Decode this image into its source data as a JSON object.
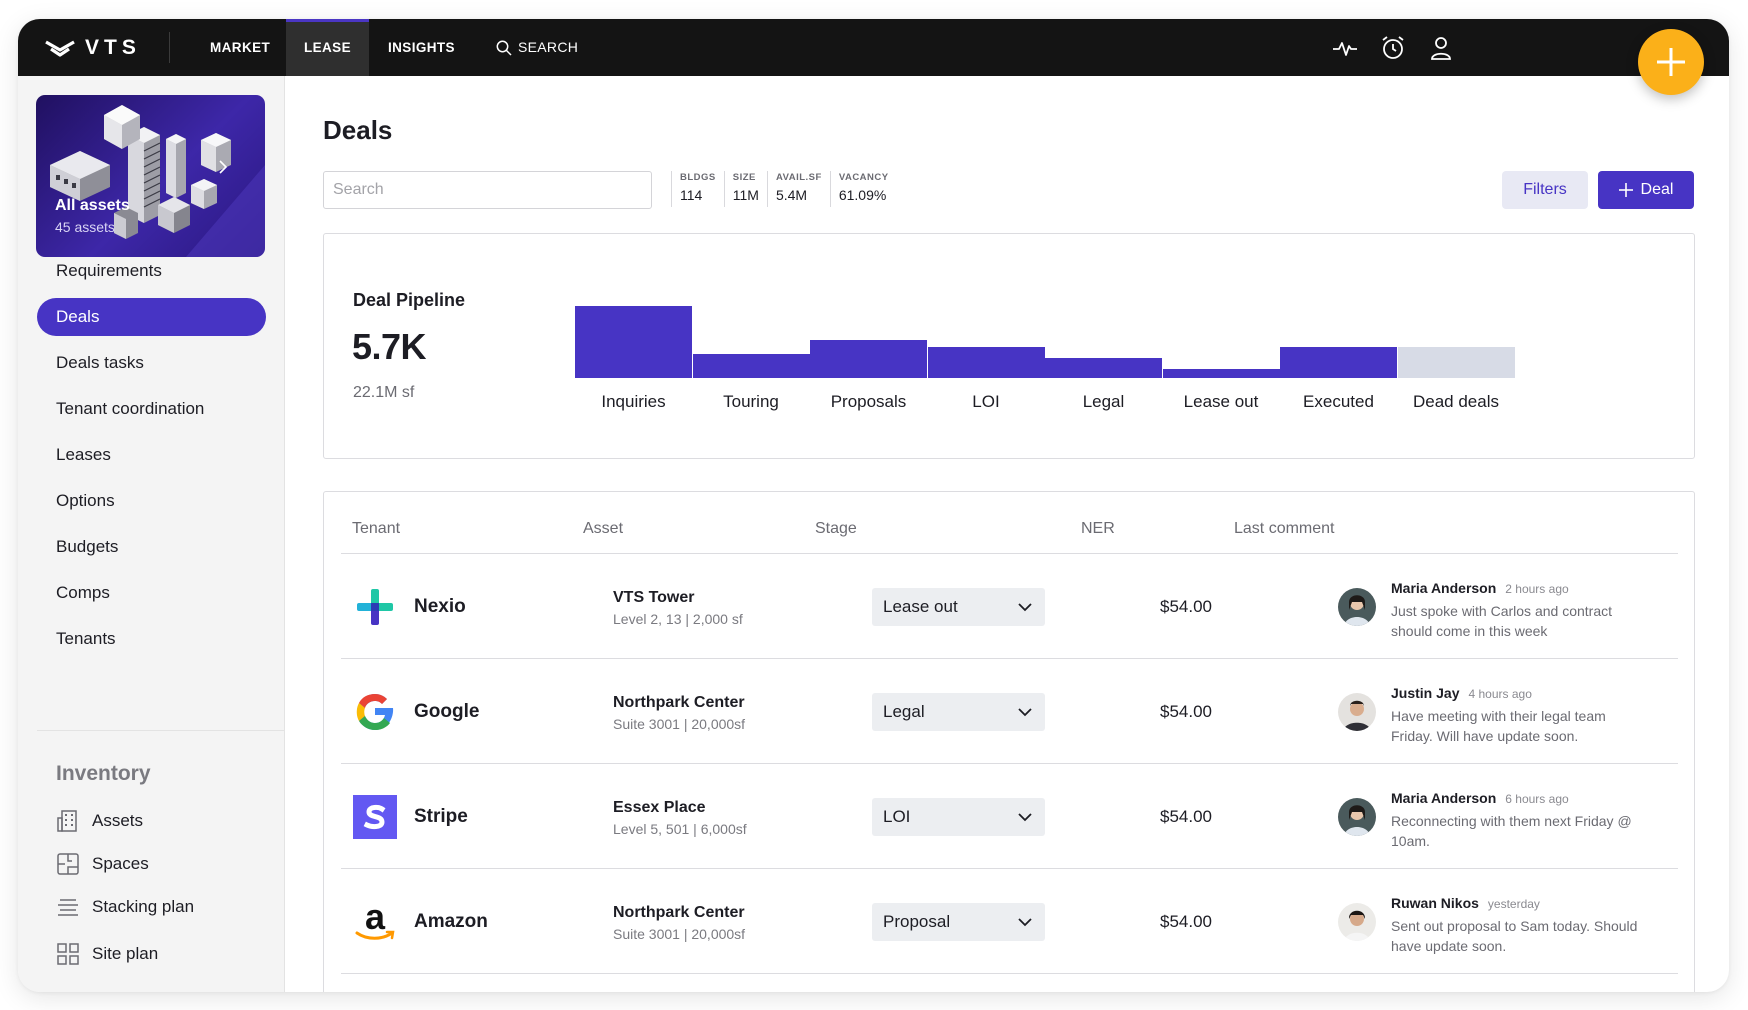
{
  "app": {
    "brand": "VTS"
  },
  "topnav": {
    "items": [
      {
        "label": "MARKET"
      },
      {
        "label": "LEASE"
      },
      {
        "label": "INSIGHTS"
      }
    ],
    "search_label": "SEARCH",
    "active": "LEASE",
    "accent": "#4734c4",
    "fab_color": "#fbb019"
  },
  "sidebar": {
    "assets_card": {
      "title": "All assets",
      "subtitle": "45 assets"
    },
    "items": [
      {
        "label": "Requirements"
      },
      {
        "label": "Deals"
      },
      {
        "label": "Deals tasks"
      },
      {
        "label": "Tenant coordination"
      },
      {
        "label": "Leases"
      },
      {
        "label": "Options"
      },
      {
        "label": "Budgets"
      },
      {
        "label": "Comps"
      },
      {
        "label": "Tenants"
      }
    ],
    "active": "Deals",
    "inventory_title": "Inventory",
    "inventory_items": [
      {
        "label": "Assets",
        "icon": "building-icon"
      },
      {
        "label": "Spaces",
        "icon": "floorplan-icon"
      },
      {
        "label": "Stacking plan",
        "icon": "stack-icon"
      },
      {
        "label": "Site plan",
        "icon": "grid-icon"
      }
    ]
  },
  "main": {
    "title": "Deals",
    "search_placeholder": "Search",
    "stats": [
      {
        "label": "BLDGS",
        "value": "114"
      },
      {
        "label": "SIZE",
        "value": "11M"
      },
      {
        "label": "AVAIL.SF",
        "value": "5.4M"
      },
      {
        "label": "VACANCY",
        "value": "61.09%"
      }
    ],
    "filters_label": "Filters",
    "add_deal_label": "Deal"
  },
  "pipeline": {
    "title": "Deal Pipeline",
    "total": "5.7K",
    "area": "22.1M sf"
  },
  "chart_data": {
    "type": "bar",
    "categories": [
      "Inquiries",
      "Touring",
      "Proposals",
      "LOI",
      "Legal",
      "Lease out",
      "Executed",
      "Dead deals"
    ],
    "values": [
      72,
      24,
      38,
      31,
      20,
      9,
      31,
      31
    ],
    "colors": [
      "#4734c4",
      "#4734c4",
      "#4734c4",
      "#4734c4",
      "#4734c4",
      "#4734c4",
      "#4734c4",
      "#d7dbe6"
    ],
    "ylim": [
      0,
      72
    ]
  },
  "table": {
    "headers": {
      "tenant": "Tenant",
      "asset": "Asset",
      "stage": "Stage",
      "ner": "NER",
      "comment": "Last comment"
    },
    "rows": [
      {
        "tenant": "Nexio",
        "logo": "nexio-logo",
        "asset": "VTS Tower",
        "asset_sub": "Level 2, 13 | 2,000 sf",
        "stage": "Lease out",
        "ner": "$54.00",
        "author": "Maria Anderson",
        "time": "2 hours ago",
        "comment": "Just spoke with Carlos and contract should come in this week"
      },
      {
        "tenant": "Google",
        "logo": "google-logo",
        "asset": "Northpark Center",
        "asset_sub": "Suite 3001 | 20,000sf",
        "stage": "Legal",
        "ner": "$54.00",
        "author": "Justin Jay",
        "time": "4 hours ago",
        "comment": "Have meeting with their legal team Friday. Will have update soon."
      },
      {
        "tenant": "Stripe",
        "logo": "stripe-logo",
        "asset": "Essex Place",
        "asset_sub": "Level 5, 501 | 6,000sf",
        "stage": "LOI",
        "ner": "$54.00",
        "author": "Maria Anderson",
        "time": "6 hours ago",
        "comment": "Reconnecting with them next Friday @ 10am."
      },
      {
        "tenant": "Amazon",
        "logo": "amazon-logo",
        "asset": "Northpark Center",
        "asset_sub": "Suite 3001 | 20,000sf",
        "stage": "Proposal",
        "ner": "$54.00",
        "author": "Ruwan Nikos",
        "time": "yesterday",
        "comment": "Sent out proposal to Sam today. Should have update soon."
      }
    ]
  }
}
